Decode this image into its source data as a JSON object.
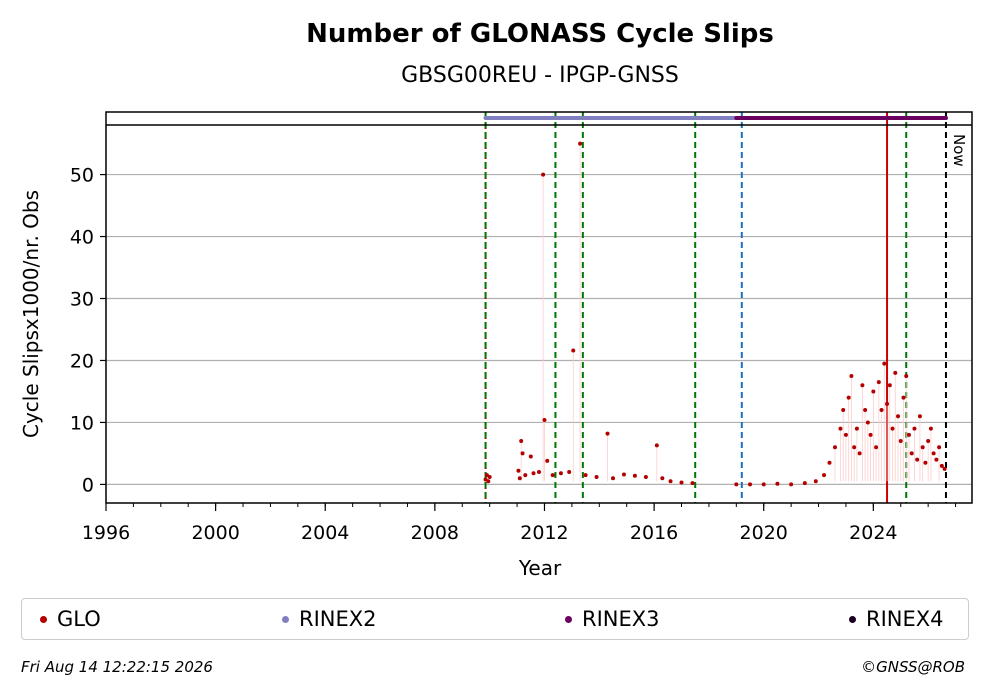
{
  "chart_data": {
    "type": "scatter",
    "title": "Number of GLONASS Cycle Slips",
    "subtitle": "GBSG00REU - IPGP-GNSS",
    "xlabel": "Year",
    "ylabel": "Cycle Slipsx1000/nr. Obs",
    "xlim": [
      1996,
      2027.6
    ],
    "ylim": [
      -3,
      58
    ],
    "xticks": [
      1996,
      2000,
      2004,
      2008,
      2012,
      2016,
      2020,
      2024
    ],
    "yticks": [
      0,
      10,
      20,
      30,
      40,
      50
    ],
    "grid": "horizontal",
    "series": [
      {
        "name": "GLO",
        "color": "#b30000",
        "points": [
          [
            2009.85,
            0.8
          ],
          [
            2009.9,
            1.5
          ],
          [
            2009.95,
            0.5
          ],
          [
            2010.0,
            1.2
          ],
          [
            2011.05,
            2.2
          ],
          [
            2011.1,
            1.0
          ],
          [
            2011.15,
            7.0
          ],
          [
            2011.2,
            5.0
          ],
          [
            2011.3,
            1.5
          ],
          [
            2011.5,
            4.5
          ],
          [
            2011.6,
            1.8
          ],
          [
            2011.8,
            2.0
          ],
          [
            2011.95,
            50.0
          ],
          [
            2012.0,
            10.4
          ],
          [
            2012.1,
            3.8
          ],
          [
            2012.3,
            1.5
          ],
          [
            2012.6,
            1.8
          ],
          [
            2012.9,
            2.0
          ],
          [
            2013.05,
            21.6
          ],
          [
            2013.3,
            55.0
          ],
          [
            2013.5,
            1.5
          ],
          [
            2013.9,
            1.2
          ],
          [
            2014.3,
            8.2
          ],
          [
            2014.5,
            1.0
          ],
          [
            2014.9,
            1.6
          ],
          [
            2015.3,
            1.4
          ],
          [
            2015.7,
            1.2
          ],
          [
            2016.1,
            6.3
          ],
          [
            2016.3,
            1.0
          ],
          [
            2016.6,
            0.5
          ],
          [
            2017.0,
            0.3
          ],
          [
            2017.4,
            0.2
          ],
          [
            2019.0,
            0.0
          ],
          [
            2019.5,
            0.0
          ],
          [
            2020.0,
            0.0
          ],
          [
            2020.5,
            0.1
          ],
          [
            2021.0,
            0.0
          ],
          [
            2021.5,
            0.2
          ],
          [
            2021.9,
            0.5
          ],
          [
            2022.2,
            1.5
          ],
          [
            2022.4,
            3.5
          ],
          [
            2022.6,
            6.0
          ],
          [
            2022.8,
            9.0
          ],
          [
            2022.9,
            12.0
          ],
          [
            2023.0,
            8.0
          ],
          [
            2023.1,
            14.0
          ],
          [
            2023.2,
            17.5
          ],
          [
            2023.3,
            6.0
          ],
          [
            2023.4,
            9.0
          ],
          [
            2023.5,
            5.0
          ],
          [
            2023.6,
            16.0
          ],
          [
            2023.7,
            12.0
          ],
          [
            2023.8,
            10.0
          ],
          [
            2023.9,
            8.0
          ],
          [
            2024.0,
            15.0
          ],
          [
            2024.1,
            6.0
          ],
          [
            2024.2,
            16.5
          ],
          [
            2024.3,
            12.0
          ],
          [
            2024.4,
            19.5
          ],
          [
            2024.5,
            13.0
          ],
          [
            2024.6,
            16.0
          ],
          [
            2024.7,
            9.0
          ],
          [
            2024.8,
            18.0
          ],
          [
            2024.9,
            11.0
          ],
          [
            2025.0,
            7.0
          ],
          [
            2025.1,
            14.0
          ],
          [
            2025.2,
            17.5
          ],
          [
            2025.3,
            8.0
          ],
          [
            2025.4,
            5.0
          ],
          [
            2025.5,
            9.0
          ],
          [
            2025.6,
            4.0
          ],
          [
            2025.7,
            11.0
          ],
          [
            2025.8,
            6.0
          ],
          [
            2025.9,
            3.5
          ],
          [
            2026.0,
            7.0
          ],
          [
            2026.1,
            9.0
          ],
          [
            2026.2,
            5.0
          ],
          [
            2026.3,
            4.0
          ],
          [
            2026.4,
            6.0
          ],
          [
            2026.5,
            3.0
          ],
          [
            2026.6,
            2.5
          ]
        ]
      },
      {
        "name": "RINEX2",
        "color": "#8080c0",
        "range": [
          2009.85,
          2019.0
        ]
      },
      {
        "name": "RINEX3",
        "color": "#6b0060",
        "range": [
          2019.0,
          2026.65
        ]
      },
      {
        "name": "RINEX4",
        "color": "#1a0020"
      }
    ],
    "vlines": [
      {
        "x": 2009.85,
        "color": "#cc0000",
        "style": "dotted"
      },
      {
        "x": 2009.85,
        "color": "#007700",
        "style": "dashed"
      },
      {
        "x": 2012.4,
        "color": "#007700",
        "style": "dashed"
      },
      {
        "x": 2013.4,
        "color": "#007700",
        "style": "dashed"
      },
      {
        "x": 2017.5,
        "color": "#007700",
        "style": "dashed"
      },
      {
        "x": 2019.2,
        "color": "#1f6fbf",
        "style": "dashed"
      },
      {
        "x": 2024.5,
        "color": "#cc0000",
        "style": "solid"
      },
      {
        "x": 2025.2,
        "color": "#007700",
        "style": "dashed"
      },
      {
        "x": 2026.65,
        "color": "#000000",
        "style": "dashed"
      }
    ],
    "now_label": "Now"
  },
  "legend": [
    {
      "label": "GLO",
      "color": "#b30000"
    },
    {
      "label": "RINEX2",
      "color": "#8080c0"
    },
    {
      "label": "RINEX3",
      "color": "#6b0060"
    },
    {
      "label": "RINEX4",
      "color": "#1a0020"
    }
  ],
  "footer": {
    "timestamp": "Fri Aug 14 12:22:15 2026",
    "credit": "©GNSS@ROB"
  }
}
